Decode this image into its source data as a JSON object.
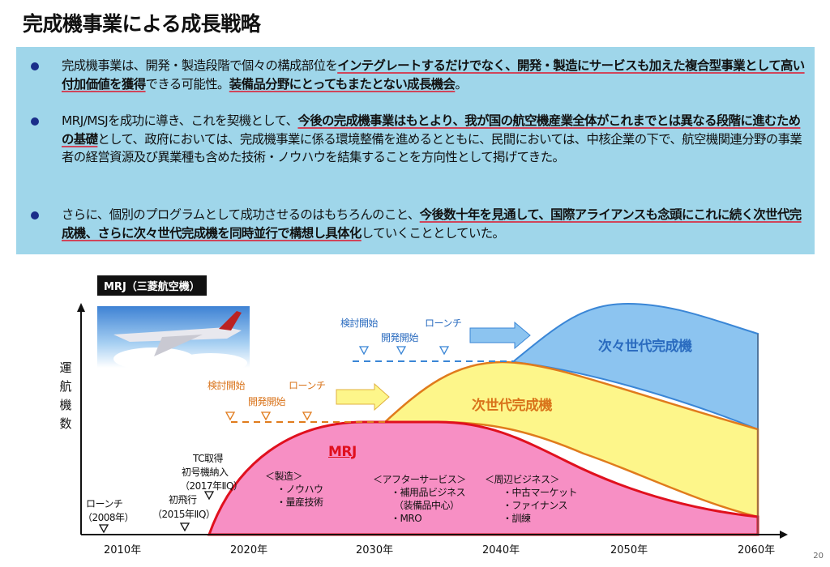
{
  "title": "完成機事業による成長戦略",
  "bullets": [
    [
      {
        "t": "完成機事業は、開発・製造段階で個々の構成部位を",
        "b": false
      },
      {
        "t": "インテグレートするだけでなく、開発・製造にサービスも加えた複合型事業として高い付加価値を獲得",
        "b": true
      },
      {
        "t": "できる可能性。",
        "b": false
      },
      {
        "t": "装備品分野にとってもまたとない成長機会",
        "b": true
      },
      {
        "t": "。",
        "b": false
      }
    ],
    [
      {
        "t": "MRJ/MSJを成功に導き、これを契機として、",
        "b": false
      },
      {
        "t": "今後の完成機事業はもとより、我が国の航空機産業全体がこれまでとは異なる段階に進むための基礎",
        "b": true
      },
      {
        "t": "として、政府においては、完成機事業に係る環境整備を進めるとともに、民間においては、中核企業の下で、航空機関連分野の事業者の経営資源及び異業種も含めた技術・ノウハウを結集することを方向性として掲げてきた。",
        "b": false
      }
    ],
    [
      {
        "t": "さらに、個別のプログラムとして成功させるのはもちろんのこと、",
        "b": false
      },
      {
        "t": "今後数十年を見通して、国際アライアンスも念頭にこれに続く次世代完成機、さらに次々世代完成機を同時並行で構想し具体化",
        "b": true
      },
      {
        "t": "していくこととしていた。",
        "b": false
      }
    ]
  ],
  "diagram": {
    "mrj_tag": "MRJ（三菱航空機）",
    "y_label": "運航機数",
    "x_ticks": [
      "2010年",
      "2020年",
      "2030年",
      "2040年",
      "2050年",
      "2060年"
    ],
    "mrj": "MRJ",
    "next_gen": "次世代完成機",
    "next_next_gen": "次々世代完成機",
    "mrj_events": {
      "launch": "ローンチ",
      "launch_year": "（2008年）",
      "first_flight": "初飛行",
      "first_flight_date": "（2015年ⅡQ）",
      "tc": "TC取得",
      "first_delivery": "初号機納入",
      "delivery_date": "（2017年ⅡQ）"
    },
    "next_events": {
      "study": "検討開始",
      "dev": "開発開始",
      "launch": "ローンチ"
    },
    "next_next_events": {
      "study": "検討開始",
      "dev": "開発開始",
      "launch": "ローンチ"
    },
    "biz": [
      {
        "head": "＜製造＞",
        "items": [
          "・ノウハウ",
          "・量産技術"
        ]
      },
      {
        "head": "＜アフターサービス＞",
        "items": [
          "・補用品ビジネス",
          "（装備品中心）",
          "・MRO"
        ]
      },
      {
        "head": "＜周辺ビジネス＞",
        "items": [
          "・中古マーケット",
          "・ファイナンス",
          "・訓練"
        ]
      }
    ]
  },
  "page_number": "20",
  "colors": {
    "mrj": "#f78fc4",
    "next": "#fdf68a",
    "next_next": "#8cc4f0",
    "box": "#9fd6ea"
  }
}
